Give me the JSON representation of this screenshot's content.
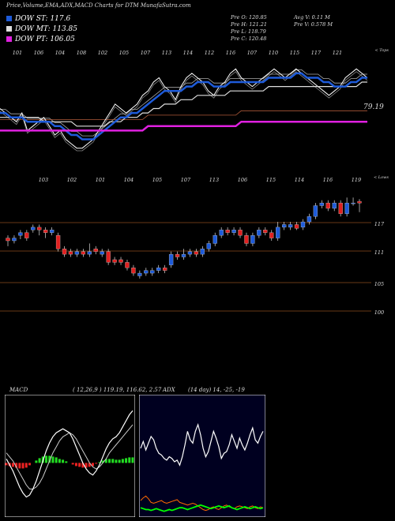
{
  "header": {
    "title": "Price,Volume,EMA,ADX,MACD Charts for DTM MunafaSutra.com"
  },
  "legend": [
    {
      "label": "DOW ST: 117.6",
      "color": "#1e5bd9"
    },
    {
      "label": "DOW MT: 113.85",
      "color": "#dddddd"
    },
    {
      "label": "DOW PT: 106.05",
      "color": "#e020e0"
    }
  ],
  "stats": {
    "price_open": "Pre  O: 120.85",
    "price_high": "Pre  H: 121.21",
    "price_low": "Pre  L: 118.79",
    "price_close": "Pre  C: 120.48",
    "avg_volume": "Avg V: 0.11 M",
    "prev_volume": "Pre  V: 0.578  M"
  },
  "chart_data": [
    {
      "type": "line",
      "panel": "EMA",
      "corner_label": "< Tops",
      "last_value_label": "79.19",
      "top_labels": [
        "101",
        "106",
        "104",
        "108",
        "102",
        "105",
        "107",
        "113",
        "114",
        "112",
        "116",
        "107",
        "110",
        "115",
        "117",
        "121"
      ],
      "series": [
        {
          "name": "Close",
          "color": "#ffffff",
          "values": [
            113,
            112,
            111,
            110,
            112,
            108,
            109,
            110,
            111,
            109,
            107,
            108,
            106,
            105,
            104,
            104,
            105,
            106,
            108,
            110,
            112,
            114,
            113,
            112,
            113,
            114,
            116,
            117,
            119,
            120,
            118,
            117,
            115,
            118,
            120,
            121,
            120,
            119,
            117,
            116,
            118,
            119,
            121,
            122,
            120,
            119,
            118,
            119,
            120,
            121,
            122,
            121,
            120,
            121,
            122,
            121,
            120,
            119,
            118,
            117,
            116,
            117,
            118,
            120,
            121,
            122,
            121,
            120
          ]
        },
        {
          "name": "Short EMA",
          "color": "#1e5bd9",
          "values": [
            112,
            112,
            111,
            111,
            111,
            110,
            110,
            110,
            110,
            110,
            109,
            109,
            108,
            107,
            107,
            106,
            106,
            106,
            107,
            108,
            109,
            110,
            111,
            111,
            112,
            112,
            113,
            114,
            115,
            116,
            117,
            117,
            117,
            117,
            118,
            118,
            119,
            119,
            119,
            118,
            118,
            118,
            119,
            119,
            119,
            119,
            119,
            119,
            119,
            120,
            120,
            120,
            120,
            120,
            121,
            121,
            120,
            120,
            120,
            119,
            119,
            118,
            118,
            118,
            119,
            119,
            120,
            120
          ]
        },
        {
          "name": "Medium EMA",
          "color": "#dddddd",
          "values": [
            111,
            111,
            111,
            111,
            111,
            111,
            111,
            111,
            110,
            110,
            110,
            110,
            110,
            110,
            109,
            109,
            109,
            109,
            109,
            109,
            110,
            110,
            110,
            111,
            111,
            111,
            112,
            112,
            113,
            113,
            114,
            114,
            114,
            115,
            115,
            115,
            116,
            116,
            116,
            116,
            116,
            116,
            117,
            117,
            117,
            117,
            117,
            117,
            117,
            118,
            118,
            118,
            118,
            118,
            118,
            118,
            118,
            118,
            118,
            118,
            118,
            118,
            118,
            118,
            118,
            118,
            119,
            119
          ]
        },
        {
          "name": "Long EMA",
          "color": "#e020e0",
          "values": [
            108,
            108,
            108,
            108,
            108,
            108,
            108,
            108,
            108,
            108,
            108,
            108,
            108,
            108,
            108,
            108,
            108,
            108,
            108,
            108,
            108,
            108,
            108,
            108,
            108,
            108,
            108,
            109,
            109,
            109,
            109,
            109,
            109,
            109,
            109,
            109,
            109,
            109,
            109,
            109,
            109,
            109,
            109,
            109,
            110,
            110,
            110,
            110,
            110,
            110,
            110,
            110,
            110,
            110,
            110,
            110,
            110,
            110,
            110,
            110,
            110,
            110,
            110,
            110,
            110,
            110,
            110,
            110
          ]
        }
      ]
    },
    {
      "type": "candlestick",
      "panel": "Price",
      "corner_label": "< Lows",
      "bottom_labels": [
        "103",
        "102",
        "101",
        "104",
        "105",
        "107",
        "113",
        "106",
        "115",
        "114",
        "116",
        "119"
      ],
      "levels": [
        "117",
        "111",
        "105",
        "100"
      ],
      "candles": [
        {
          "o": 114,
          "c": 113.5,
          "h": 114.5,
          "l": 112.5
        },
        {
          "o": 113.5,
          "c": 114,
          "h": 114.5,
          "l": 113
        },
        {
          "o": 114.5,
          "c": 115,
          "h": 115.5,
          "l": 113.8
        },
        {
          "o": 115,
          "c": 114,
          "h": 115.5,
          "l": 113.5
        },
        {
          "o": 115.5,
          "c": 116,
          "h": 116.5,
          "l": 115
        },
        {
          "o": 116,
          "c": 115.5,
          "h": 116.5,
          "l": 114.5
        },
        {
          "o": 115.5,
          "c": 115,
          "h": 116,
          "l": 114
        },
        {
          "o": 115,
          "c": 115.5,
          "h": 116,
          "l": 114.5
        },
        {
          "o": 114.5,
          "c": 112,
          "h": 115,
          "l": 111.5
        },
        {
          "o": 112,
          "c": 111,
          "h": 112.5,
          "l": 110.5
        },
        {
          "o": 111.5,
          "c": 111,
          "h": 112,
          "l": 110.5
        },
        {
          "o": 111,
          "c": 111.5,
          "h": 112,
          "l": 110.5
        },
        {
          "o": 111.5,
          "c": 111,
          "h": 112,
          "l": 110.5
        },
        {
          "o": 111,
          "c": 111.5,
          "h": 113,
          "l": 110.5
        },
        {
          "o": 112,
          "c": 111.5,
          "h": 112.5,
          "l": 111
        },
        {
          "o": 111,
          "c": 111.5,
          "h": 112,
          "l": 110.5
        },
        {
          "o": 111.5,
          "c": 109.5,
          "h": 112,
          "l": 109
        },
        {
          "o": 110,
          "c": 109.5,
          "h": 110.5,
          "l": 109
        },
        {
          "o": 110,
          "c": 109.5,
          "h": 110.5,
          "l": 109
        },
        {
          "o": 109.5,
          "c": 108.5,
          "h": 110,
          "l": 108
        },
        {
          "o": 108.5,
          "c": 107.5,
          "h": 109,
          "l": 107
        },
        {
          "o": 107,
          "c": 107.5,
          "h": 108,
          "l": 106.5
        },
        {
          "o": 107.5,
          "c": 108,
          "h": 108.5,
          "l": 107
        },
        {
          "o": 107.5,
          "c": 108,
          "h": 108.5,
          "l": 107
        },
        {
          "o": 108,
          "c": 108.5,
          "h": 109,
          "l": 107.5
        },
        {
          "o": 108.5,
          "c": 108,
          "h": 109,
          "l": 107.5
        },
        {
          "o": 109,
          "c": 111,
          "h": 111.5,
          "l": 108.5
        },
        {
          "o": 111,
          "c": 110.5,
          "h": 111.5,
          "l": 110
        },
        {
          "o": 110.5,
          "c": 111,
          "h": 112,
          "l": 110
        },
        {
          "o": 111,
          "c": 111.5,
          "h": 112,
          "l": 110.5
        },
        {
          "o": 111.5,
          "c": 111,
          "h": 112,
          "l": 110.5
        },
        {
          "o": 111,
          "c": 112,
          "h": 112.5,
          "l": 110.5
        },
        {
          "o": 112,
          "c": 113,
          "h": 113.5,
          "l": 111.5
        },
        {
          "o": 113,
          "c": 114.5,
          "h": 115,
          "l": 112.5
        },
        {
          "o": 114.5,
          "c": 115.5,
          "h": 116,
          "l": 114
        },
        {
          "o": 115.5,
          "c": 115,
          "h": 116,
          "l": 114.5
        },
        {
          "o": 115,
          "c": 115.5,
          "h": 116,
          "l": 114.5
        },
        {
          "o": 115.5,
          "c": 114.5,
          "h": 116,
          "l": 114
        },
        {
          "o": 114.5,
          "c": 113,
          "h": 115,
          "l": 112.5
        },
        {
          "o": 113,
          "c": 114.5,
          "h": 115,
          "l": 112.5
        },
        {
          "o": 114.5,
          "c": 115.5,
          "h": 116,
          "l": 114
        },
        {
          "o": 115.5,
          "c": 115,
          "h": 116,
          "l": 114.5
        },
        {
          "o": 115,
          "c": 114,
          "h": 115.5,
          "l": 113.5
        },
        {
          "o": 114,
          "c": 116,
          "h": 117,
          "l": 113.5
        },
        {
          "o": 116,
          "c": 116.5,
          "h": 117,
          "l": 115.5
        },
        {
          "o": 116,
          "c": 116.5,
          "h": 117,
          "l": 115.5
        },
        {
          "o": 116.5,
          "c": 115.8,
          "h": 117,
          "l": 115.5
        },
        {
          "o": 116,
          "c": 117,
          "h": 117.5,
          "l": 115.5
        },
        {
          "o": 117,
          "c": 118,
          "h": 118.5,
          "l": 116.5
        },
        {
          "o": 118,
          "c": 120,
          "h": 120.5,
          "l": 117.5
        },
        {
          "o": 120,
          "c": 120.5,
          "h": 121,
          "l": 119.5
        },
        {
          "o": 120.5,
          "c": 119.5,
          "h": 121,
          "l": 119
        },
        {
          "o": 119.5,
          "c": 120.5,
          "h": 121,
          "l": 119
        },
        {
          "o": 120.5,
          "c": 118.5,
          "h": 121,
          "l": 118
        },
        {
          "o": 118.5,
          "c": 120.5,
          "h": 121.5,
          "l": 118
        },
        {
          "o": 120.5,
          "c": 120.5,
          "h": 121.5,
          "l": 120
        },
        {
          "o": 120.8,
          "c": 120.48,
          "h": 121.21,
          "l": 118.79
        }
      ]
    },
    {
      "type": "line",
      "panel": "MACD",
      "label": "MACD",
      "params_text": "( 12,26,9 ) 119.19, 116.62, 2.57",
      "series": [
        {
          "name": "MACD",
          "color": "#ffffff",
          "values": [
            0.2,
            -0.1,
            -0.4,
            -0.8,
            -1.2,
            -1.5,
            -1.7,
            -1.6,
            -1.3,
            -0.9,
            -0.4,
            0.1,
            0.6,
            1.0,
            1.3,
            1.5,
            1.6,
            1.7,
            1.6,
            1.5,
            1.2,
            0.8,
            0.4,
            0.0,
            -0.3,
            -0.5,
            -0.6,
            -0.4,
            -0.1,
            0.3,
            0.7,
            1.0,
            1.2,
            1.3,
            1.5,
            1.8,
            2.1,
            2.4,
            2.6
          ]
        },
        {
          "name": "Signal",
          "color": "#cccccc",
          "values": [
            0.5,
            0.3,
            0.1,
            -0.2,
            -0.5,
            -0.8,
            -1.1,
            -1.3,
            -1.3,
            -1.2,
            -1.0,
            -0.7,
            -0.3,
            0.1,
            0.5,
            0.8,
            1.1,
            1.3,
            1.4,
            1.5,
            1.4,
            1.2,
            0.9,
            0.6,
            0.3,
            0.0,
            -0.2,
            -0.3,
            -0.2,
            0.0,
            0.2,
            0.5,
            0.7,
            0.9,
            1.1,
            1.3,
            1.5,
            1.7,
            1.9
          ]
        }
      ]
    },
    {
      "type": "line",
      "panel": "ADX",
      "label": "ADX",
      "params_text": "(14 day) 14, -25, -19",
      "series": [
        {
          "name": "ADX",
          "color": "#ffffff",
          "values": [
            30,
            34,
            29,
            33,
            37,
            35,
            30,
            27,
            26,
            24,
            23,
            25,
            24,
            22,
            23,
            20,
            25,
            32,
            40,
            35,
            33,
            40,
            44,
            38,
            30,
            25,
            28,
            34,
            40,
            36,
            31,
            24,
            27,
            28,
            32,
            38,
            34,
            30,
            36,
            32,
            29,
            33,
            38,
            42,
            35,
            33,
            37,
            40
          ]
        },
        {
          "name": "+DI",
          "color": "#00ff00",
          "values": [
            14,
            13,
            12,
            12,
            11,
            12,
            13,
            12,
            11,
            10,
            11,
            12,
            11,
            12,
            13,
            14,
            14,
            13,
            12,
            13,
            14,
            15,
            16,
            17,
            16,
            15,
            14,
            13,
            14,
            15,
            16,
            15,
            14,
            15,
            16,
            14,
            13,
            12,
            13,
            14,
            15,
            14,
            13,
            14,
            15,
            14,
            13,
            14
          ]
        },
        {
          "name": "-DI",
          "color": "#ff6a00",
          "values": [
            22,
            25,
            27,
            24,
            20,
            19,
            20,
            21,
            22,
            20,
            19,
            20,
            21,
            22,
            23,
            20,
            19,
            18,
            17,
            18,
            19,
            18,
            16,
            14,
            12,
            11,
            12,
            14,
            15,
            13,
            12,
            14,
            16,
            17,
            15,
            14,
            13,
            15,
            16,
            15,
            14,
            13,
            15,
            16,
            14,
            13,
            15,
            14
          ]
        }
      ]
    }
  ]
}
